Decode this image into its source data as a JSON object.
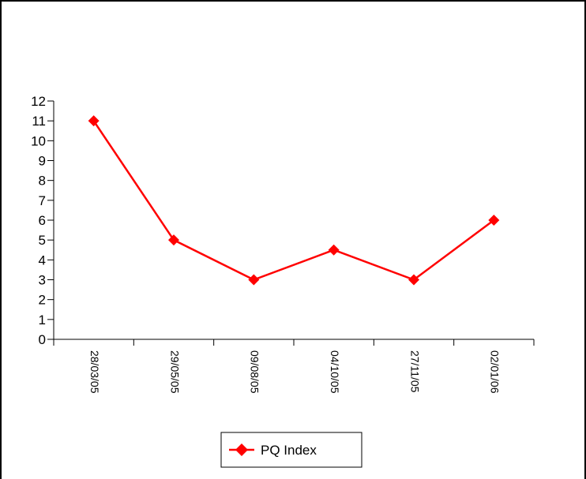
{
  "chart_data": {
    "type": "line",
    "title": "",
    "xlabel": "",
    "ylabel": "",
    "categories": [
      "28/03/05",
      "29/05/05",
      "09/08/05",
      "04/10/05",
      "27/11/05",
      "02/01/06"
    ],
    "series": [
      {
        "name": "PQ Index",
        "values": [
          11,
          5,
          3,
          4.5,
          3,
          6
        ],
        "color": "#ff0000",
        "marker": "diamond"
      }
    ],
    "ylim": [
      0,
      12
    ],
    "yticks": [
      0,
      1,
      2,
      3,
      4,
      5,
      6,
      7,
      8,
      9,
      10,
      11,
      12
    ],
    "grid": false,
    "legend_position": "bottom-center"
  }
}
